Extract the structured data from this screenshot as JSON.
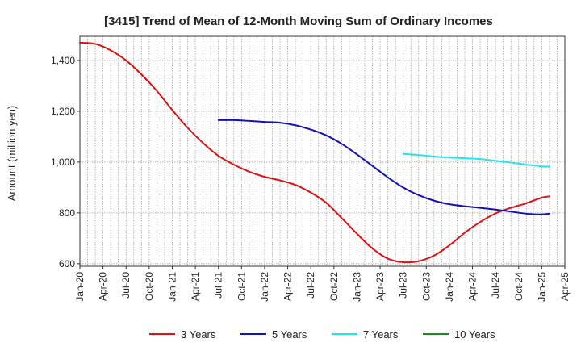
{
  "chart_data": {
    "type": "line",
    "title": "[3415]  Trend of Mean of 12-Month Moving Sum of Ordinary Incomes",
    "xlabel": "",
    "ylabel": "Amount (million yen)",
    "ylim": [
      590,
      1495
    ],
    "yticks": [
      600,
      800,
      1000,
      1200,
      1400
    ],
    "ytick_labels": [
      "600",
      "800",
      "1,000",
      "1,200",
      "1,400"
    ],
    "x_range": [
      "2020-01",
      "2025-04"
    ],
    "xtick_labels": [
      "Jan-20",
      "Apr-20",
      "Jul-20",
      "Oct-20",
      "Jan-21",
      "Apr-21",
      "Jul-21",
      "Oct-21",
      "Jan-22",
      "Apr-22",
      "Jul-22",
      "Oct-22",
      "Jan-23",
      "Apr-23",
      "Jul-23",
      "Oct-23",
      "Jan-24",
      "Apr-24",
      "Jul-24",
      "Oct-24",
      "Jan-25",
      "Apr-25"
    ],
    "grid": true,
    "legend_position": "bottom",
    "series": [
      {
        "name": "3 Years",
        "color": "#dd1111",
        "points": [
          [
            "2020-01",
            1470
          ],
          [
            "2020-03",
            1465
          ],
          [
            "2020-05",
            1440
          ],
          [
            "2020-07",
            1400
          ],
          [
            "2020-09",
            1345
          ],
          [
            "2020-11",
            1280
          ],
          [
            "2021-01",
            1205
          ],
          [
            "2021-03",
            1135
          ],
          [
            "2021-05",
            1075
          ],
          [
            "2021-07",
            1025
          ],
          [
            "2021-09",
            990
          ],
          [
            "2021-11",
            962
          ],
          [
            "2022-01",
            942
          ],
          [
            "2022-03",
            928
          ],
          [
            "2022-05",
            910
          ],
          [
            "2022-07",
            880
          ],
          [
            "2022-09",
            840
          ],
          [
            "2022-11",
            780
          ],
          [
            "2023-01",
            718
          ],
          [
            "2023-03",
            660
          ],
          [
            "2023-05",
            620
          ],
          [
            "2023-07",
            606
          ],
          [
            "2023-09",
            610
          ],
          [
            "2023-11",
            632
          ],
          [
            "2024-01",
            672
          ],
          [
            "2024-03",
            722
          ],
          [
            "2024-05",
            764
          ],
          [
            "2024-07",
            798
          ],
          [
            "2024-09",
            820
          ],
          [
            "2024-11",
            838
          ],
          [
            "2025-01",
            860
          ],
          [
            "2025-02",
            865
          ]
        ]
      },
      {
        "name": "5 Years",
        "color": "#1111bb",
        "points": [
          [
            "2021-07",
            1165
          ],
          [
            "2021-09",
            1165
          ],
          [
            "2021-11",
            1162
          ],
          [
            "2022-01",
            1158
          ],
          [
            "2022-03",
            1155
          ],
          [
            "2022-05",
            1145
          ],
          [
            "2022-07",
            1128
          ],
          [
            "2022-09",
            1105
          ],
          [
            "2022-11",
            1072
          ],
          [
            "2023-01",
            1030
          ],
          [
            "2023-03",
            985
          ],
          [
            "2023-05",
            940
          ],
          [
            "2023-07",
            900
          ],
          [
            "2023-09",
            870
          ],
          [
            "2023-11",
            848
          ],
          [
            "2024-01",
            834
          ],
          [
            "2024-03",
            826
          ],
          [
            "2024-05",
            820
          ],
          [
            "2024-07",
            813
          ],
          [
            "2024-09",
            805
          ],
          [
            "2024-11",
            797
          ],
          [
            "2025-01",
            794
          ],
          [
            "2025-02",
            797
          ]
        ]
      },
      {
        "name": "7 Years",
        "color": "#22e5ee",
        "points": [
          [
            "2023-07",
            1032
          ],
          [
            "2023-09",
            1028
          ],
          [
            "2023-11",
            1022
          ],
          [
            "2024-01",
            1018
          ],
          [
            "2024-03",
            1015
          ],
          [
            "2024-05",
            1012
          ],
          [
            "2024-07",
            1005
          ],
          [
            "2024-09",
            998
          ],
          [
            "2024-11",
            990
          ],
          [
            "2025-01",
            983
          ],
          [
            "2025-02",
            982
          ]
        ]
      },
      {
        "name": "10 Years",
        "color": "#228822",
        "points": []
      }
    ]
  }
}
